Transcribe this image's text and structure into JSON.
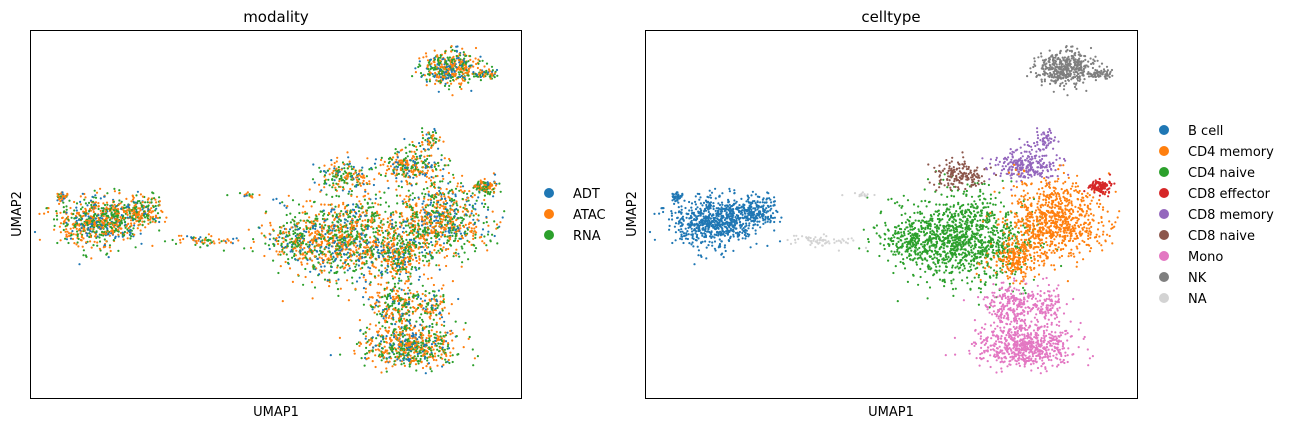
{
  "chart_data": [
    {
      "type": "scatter",
      "title": "modality",
      "xlabel": "UMAP1",
      "ylabel": "UMAP2",
      "legend_position": "right",
      "grid": false,
      "ticks": false,
      "series": [
        {
          "name": "ADT",
          "color": "#1f77b4"
        },
        {
          "name": "ATAC",
          "color": "#ff7f0e"
        },
        {
          "name": "RNA",
          "color": "#2ca02c"
        }
      ]
    },
    {
      "type": "scatter",
      "title": "celltype",
      "xlabel": "UMAP1",
      "ylabel": "UMAP2",
      "legend_position": "right",
      "grid": false,
      "ticks": false,
      "series": [
        {
          "name": "B cell",
          "color": "#1f77b4"
        },
        {
          "name": "CD4 memory",
          "color": "#ff7f0e"
        },
        {
          "name": "CD4 naive",
          "color": "#2ca02c"
        },
        {
          "name": "CD8 effector",
          "color": "#d62728"
        },
        {
          "name": "CD8 memory",
          "color": "#9467bd"
        },
        {
          "name": "CD8 naive",
          "color": "#8c564b"
        },
        {
          "name": "Mono",
          "color": "#e377c2"
        },
        {
          "name": "NK",
          "color": "#7f7f7f"
        },
        {
          "name": "NA",
          "color": "#d3d3d3"
        }
      ]
    }
  ]
}
